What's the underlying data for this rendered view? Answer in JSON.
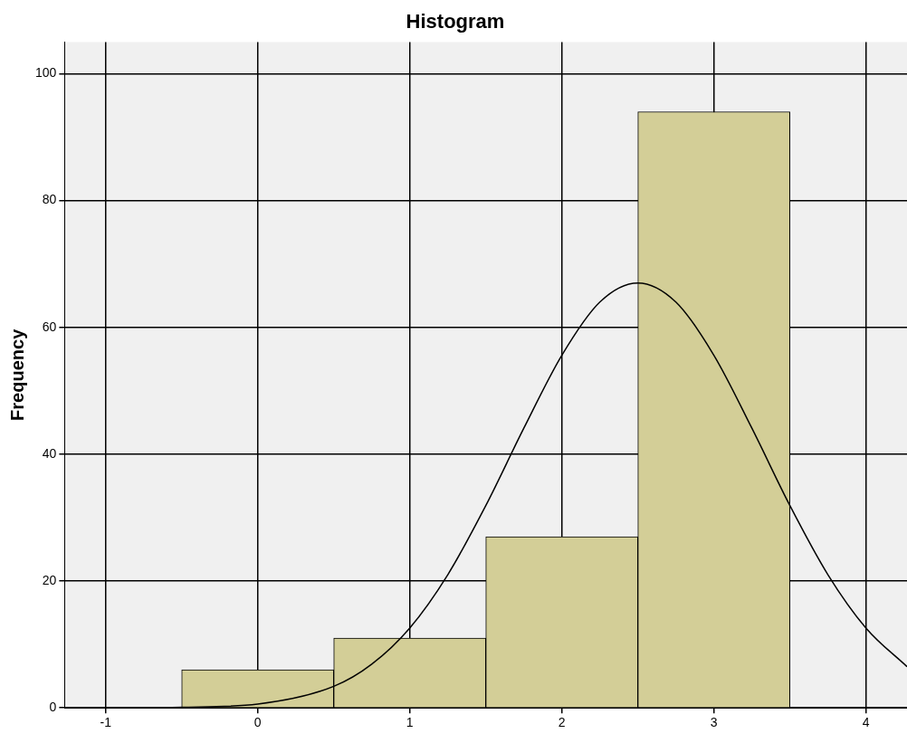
{
  "chart_data": {
    "type": "histogram",
    "title": "Histogram",
    "ylabel": "Frequency",
    "bins": [
      -0.5,
      0.5,
      1.5,
      2.5,
      3.5
    ],
    "series": [
      {
        "color": "#d3ce97",
        "values": [
          6,
          11,
          27,
          94
        ]
      },
      {
        "type": "line",
        "color": "#000000",
        "marker": "none",
        "x": [
          -1,
          -0.5,
          0,
          0.5,
          0.75,
          1,
          1.25,
          1.5,
          1.75,
          2,
          2.25,
          2.5,
          2.75,
          3,
          3.25,
          3.5,
          3.75,
          4,
          4.27
        ],
        "values": [
          0,
          0.1,
          0.6,
          3.4,
          6.9,
          12.6,
          21,
          31.9,
          44.1,
          55.6,
          64,
          67,
          64,
          55.6,
          44.1,
          31.9,
          21,
          12.6,
          6.5
        ]
      }
    ],
    "xlim": [
      -1.27,
      4.27
    ],
    "xticks": [
      -1,
      0,
      1,
      2,
      3,
      4
    ],
    "ylim": [
      0,
      105
    ],
    "yticks": [
      0,
      20,
      40,
      60,
      80,
      100
    ],
    "grid": true,
    "legend": false
  }
}
